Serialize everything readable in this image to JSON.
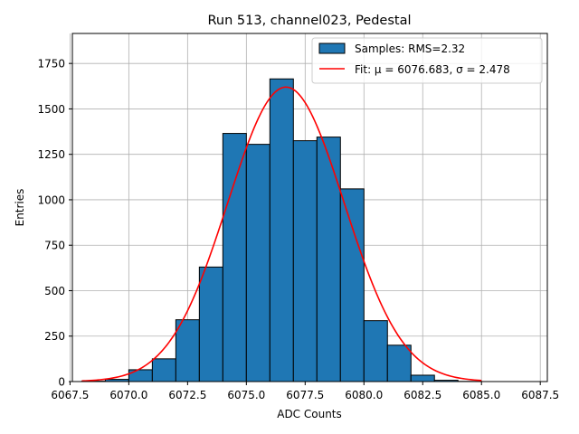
{
  "chart_data": {
    "type": "bar",
    "title": "Run 513, channel023, Pedestal",
    "xlabel": "ADC Counts",
    "ylabel": "Entries",
    "xlim": [
      6067.6,
      6087.8
    ],
    "ylim": [
      0,
      1915
    ],
    "grid": true,
    "legend_position": "top-right",
    "x_ticks": [
      6067.5,
      6070.0,
      6072.5,
      6075.0,
      6077.5,
      6080.0,
      6082.5,
      6085.0,
      6087.5
    ],
    "x_tick_labels": [
      "6067.5",
      "6070.0",
      "6072.5",
      "6075.0",
      "6077.5",
      "6080.0",
      "6082.5",
      "6085.0",
      "6087.5"
    ],
    "y_ticks": [
      0,
      250,
      500,
      750,
      1000,
      1250,
      1500,
      1750
    ],
    "y_tick_labels": [
      "0",
      "250",
      "500",
      "750",
      "1000",
      "1250",
      "1500",
      "1750"
    ],
    "histogram": {
      "name": "Samples: RMS=2.32",
      "color": "#1f77b4",
      "edge_color": "#000000",
      "bins": [
        {
          "x0": 6068.0,
          "x1": 6069.0,
          "count": 2
        },
        {
          "x0": 6069.0,
          "x1": 6070.0,
          "count": 12
        },
        {
          "x0": 6070.0,
          "x1": 6071.0,
          "count": 65
        },
        {
          "x0": 6071.0,
          "x1": 6072.0,
          "count": 125
        },
        {
          "x0": 6072.0,
          "x1": 6073.0,
          "count": 340
        },
        {
          "x0": 6073.0,
          "x1": 6074.0,
          "count": 630
        },
        {
          "x0": 6074.0,
          "x1": 6075.0,
          "count": 1365
        },
        {
          "x0": 6075.0,
          "x1": 6076.0,
          "count": 1305
        },
        {
          "x0": 6076.0,
          "x1": 6077.0,
          "count": 1665
        },
        {
          "x0": 6077.0,
          "x1": 6078.0,
          "count": 1325
        },
        {
          "x0": 6078.0,
          "x1": 6079.0,
          "count": 1345
        },
        {
          "x0": 6079.0,
          "x1": 6080.0,
          "count": 1060
        },
        {
          "x0": 6080.0,
          "x1": 6081.0,
          "count": 335
        },
        {
          "x0": 6081.0,
          "x1": 6082.0,
          "count": 200
        },
        {
          "x0": 6082.0,
          "x1": 6083.0,
          "count": 35
        },
        {
          "x0": 6083.0,
          "x1": 6084.0,
          "count": 7
        },
        {
          "x0": 6084.0,
          "x1": 6085.0,
          "count": 1
        }
      ]
    },
    "fit": {
      "name": "Fit: μ = 6076.683, σ = 2.478",
      "color": "#ff0000",
      "mu": 6076.683,
      "sigma": 2.478,
      "amplitude": 1620,
      "x_range": [
        6068.0,
        6085.0
      ]
    }
  }
}
